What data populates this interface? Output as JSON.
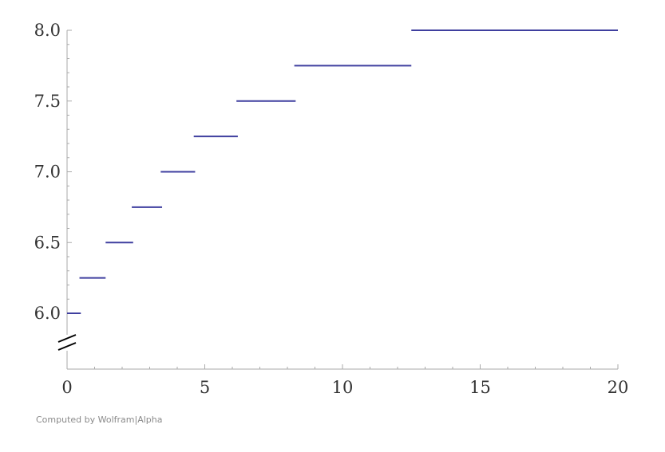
{
  "chart_data": {
    "type": "line",
    "subtype": "step",
    "title": "",
    "xlabel": "",
    "ylabel": "",
    "xlim": [
      0,
      20
    ],
    "ylim": [
      5.8,
      8.0
    ],
    "y_axis_break": true,
    "grid": false,
    "x_ticks": [
      0,
      5,
      10,
      15,
      20
    ],
    "x_tick_labels": [
      "0",
      "5",
      "10",
      "15",
      "20"
    ],
    "y_ticks": [
      6.0,
      6.5,
      7.0,
      7.5,
      8.0
    ],
    "y_tick_labels": [
      "6.0",
      "6.5",
      "7.0",
      "7.5",
      "8.0"
    ],
    "series": [
      {
        "color": "#3f3f9f",
        "segments": [
          {
            "x0": 0.0,
            "x1": 0.5,
            "y": 6.0
          },
          {
            "x0": 0.45,
            "x1": 1.4,
            "y": 6.25
          },
          {
            "x0": 1.4,
            "x1": 2.4,
            "y": 6.5
          },
          {
            "x0": 2.35,
            "x1": 3.45,
            "y": 6.75
          },
          {
            "x0": 3.4,
            "x1": 4.65,
            "y": 7.0
          },
          {
            "x0": 4.6,
            "x1": 6.2,
            "y": 7.25
          },
          {
            "x0": 6.15,
            "x1": 8.3,
            "y": 7.5
          },
          {
            "x0": 8.25,
            "x1": 12.5,
            "y": 7.75
          },
          {
            "x0": 12.5,
            "x1": 20.0,
            "y": 8.0
          }
        ]
      }
    ]
  },
  "credit": "Computed by Wolfram|Alpha"
}
